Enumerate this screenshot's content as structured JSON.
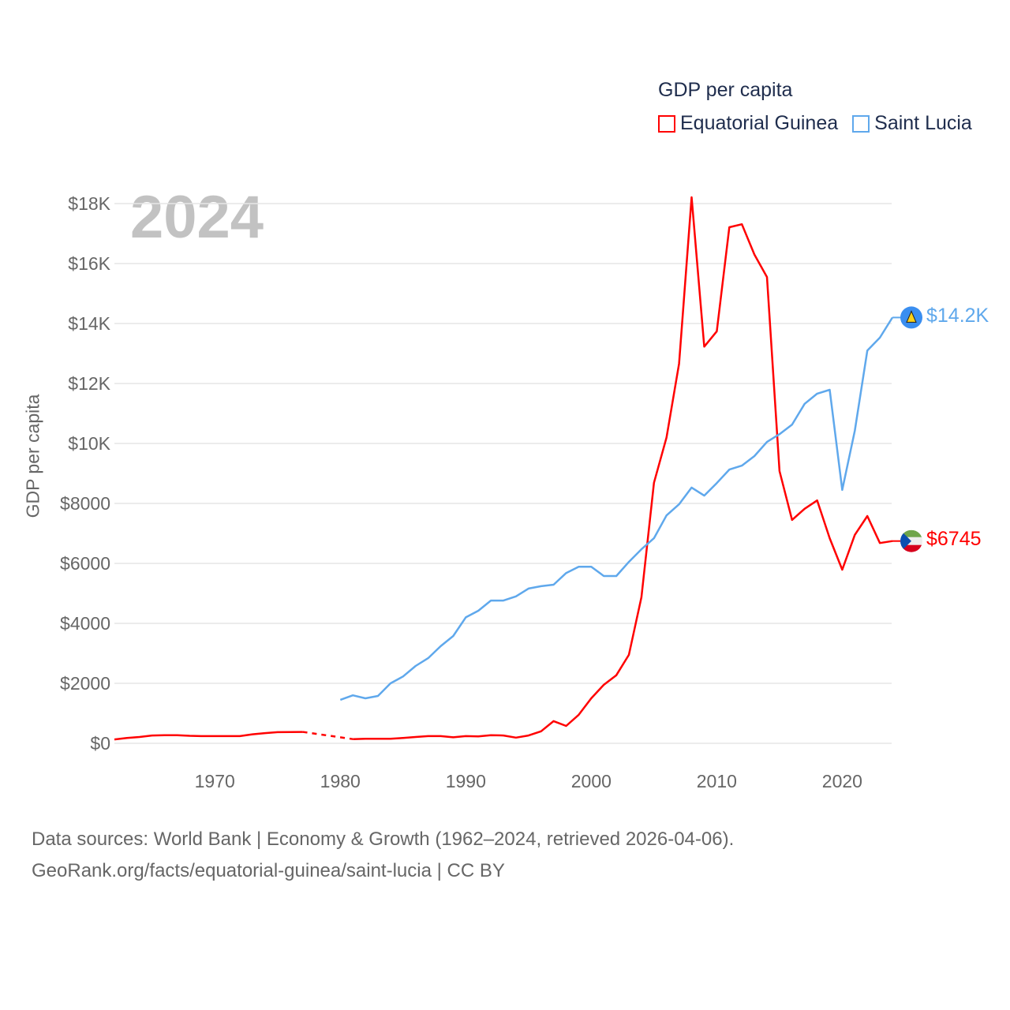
{
  "legend": {
    "title": "GDP per capita",
    "items": [
      "Equatorial Guinea",
      "Saint Lucia"
    ]
  },
  "watermark_year": "2024",
  "footer": {
    "line1": "Data sources: World Bank | Economy & Growth (1962–2024, retrieved 2026-04-06).",
    "line2": "GeoRank.org/facts/equatorial-guinea/saint-lucia | CC BY"
  },
  "end_labels": {
    "equatorial_guinea": "$6745",
    "saint_lucia": "$14.2K"
  },
  "chart_data": {
    "type": "line",
    "title": "GDP per capita",
    "xlabel": "",
    "ylabel": "GDP per capita",
    "xlim": [
      1962,
      2024
    ],
    "ylim": [
      0,
      18000
    ],
    "grid": true,
    "legend_placement": "top-right",
    "x_ticks": [
      1970,
      1980,
      1990,
      2000,
      2010,
      2020
    ],
    "x_tick_labels": [
      "1970",
      "1980",
      "1990",
      "2000",
      "2010",
      "2020"
    ],
    "y_ticks": [
      0,
      2000,
      4000,
      6000,
      8000,
      10000,
      12000,
      14000,
      16000,
      18000
    ],
    "y_tick_labels": [
      "$0",
      "$2000",
      "$4000",
      "$6000",
      "$8000",
      "$10K",
      "$12K",
      "$14K",
      "$16K",
      "$18K"
    ],
    "series": [
      {
        "name": "Equatorial Guinea",
        "color": "#ff0000",
        "x": [
          1962,
          1963,
          1964,
          1965,
          1966,
          1967,
          1968,
          1969,
          1970,
          1971,
          1972,
          1973,
          1974,
          1975,
          1976,
          1977,
          1981,
          1982,
          1983,
          1984,
          1985,
          1986,
          1987,
          1988,
          1989,
          1990,
          1991,
          1992,
          1993,
          1994,
          1995,
          1996,
          1997,
          1998,
          1999,
          2000,
          2001,
          2002,
          2003,
          2004,
          2005,
          2006,
          2007,
          2008,
          2009,
          2010,
          2011,
          2012,
          2013,
          2014,
          2015,
          2016,
          2017,
          2018,
          2019,
          2020,
          2021,
          2022,
          2023,
          2024
        ],
        "values": [
          130,
          180,
          210,
          260,
          270,
          270,
          250,
          240,
          240,
          240,
          240,
          300,
          340,
          370,
          375,
          380,
          140,
          150,
          150,
          150,
          180,
          210,
          240,
          240,
          200,
          240,
          230,
          270,
          260,
          190,
          260,
          400,
          740,
          580,
          950,
          1500,
          1950,
          2270,
          2950,
          4870,
          8690,
          10200,
          12660,
          18210,
          13230,
          13740,
          17210,
          17310,
          16300,
          15550,
          9080,
          7450,
          7820,
          8100,
          6840,
          5790,
          6950,
          7580,
          6680,
          6745
        ],
        "gap": [
          1977,
          1981
        ]
      },
      {
        "name": "Saint Lucia",
        "color": "#5fa8ec",
        "x": [
          1980,
          1981,
          1982,
          1983,
          1984,
          1985,
          1986,
          1987,
          1988,
          1989,
          1990,
          1991,
          1992,
          1993,
          1994,
          1995,
          1996,
          1997,
          1998,
          1999,
          2000,
          2001,
          2002,
          2003,
          2004,
          2005,
          2006,
          2007,
          2008,
          2009,
          2010,
          2011,
          2012,
          2013,
          2014,
          2015,
          2016,
          2017,
          2018,
          2019,
          2020,
          2021,
          2022,
          2023,
          2024
        ],
        "values": [
          1450,
          1600,
          1500,
          1580,
          2000,
          2230,
          2580,
          2840,
          3240,
          3580,
          4200,
          4420,
          4760,
          4760,
          4900,
          5160,
          5240,
          5290,
          5680,
          5890,
          5890,
          5580,
          5580,
          6050,
          6470,
          6840,
          7600,
          7970,
          8530,
          8260,
          8680,
          9130,
          9260,
          9580,
          10050,
          10310,
          10630,
          11320,
          11660,
          11790,
          8450,
          10420,
          13100,
          13530,
          14200
        ]
      }
    ]
  }
}
